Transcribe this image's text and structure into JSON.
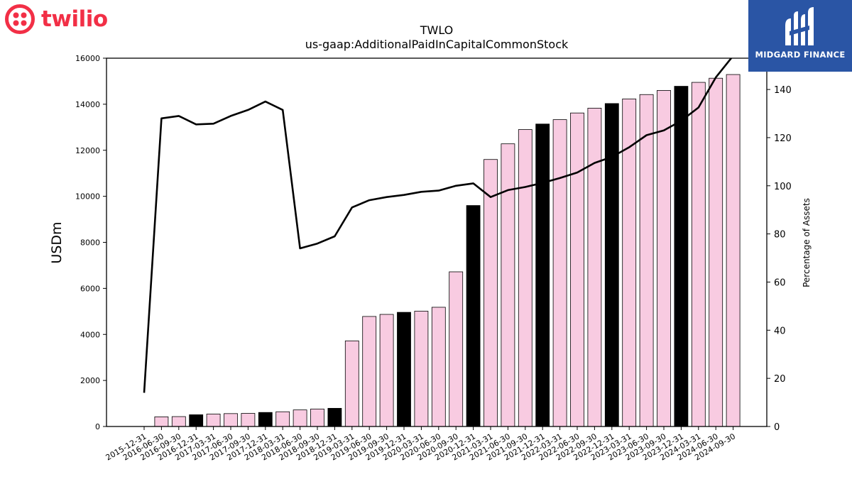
{
  "logos": {
    "left": {
      "text": "twilio",
      "color": "#f22f46"
    },
    "right": {
      "text": "MIDGARD FINANCE",
      "background": "#2a55a5"
    }
  },
  "chart_data": {
    "type": "bar",
    "title": "TWLO",
    "subtitle": "us-gaap:AdditionalPaidInCapitalCommonStock",
    "ylabel": "USDm",
    "y2label": "Percentage of Assets",
    "ylim": [
      0,
      16000
    ],
    "y2lim": [
      0,
      153
    ],
    "yticks": [
      0,
      2000,
      4000,
      6000,
      8000,
      10000,
      12000,
      14000,
      16000
    ],
    "y2ticks": [
      0,
      20,
      40,
      60,
      80,
      100,
      120,
      140
    ],
    "categories": [
      "2015-12-31",
      "2016-06-30",
      "2016-09-30",
      "2016-12-31",
      "2017-03-31",
      "2017-06-30",
      "2017-09-30",
      "2017-12-31",
      "2018-03-31",
      "2018-06-30",
      "2018-09-30",
      "2018-12-31",
      "2019-03-31",
      "2019-06-30",
      "2019-09-30",
      "2019-12-31",
      "2020-03-31",
      "2020-06-30",
      "2020-09-30",
      "2020-12-31",
      "2021-03-31",
      "2021-06-30",
      "2021-09-30",
      "2021-12-31",
      "2022-03-31",
      "2022-06-30",
      "2022-09-30",
      "2022-12-31",
      "2023-03-31",
      "2023-06-30",
      "2023-09-30",
      "2023-12-31",
      "2024-03-31",
      "2024-06-30",
      "2024-09-30"
    ],
    "series": [
      {
        "kind": "bar",
        "values": [
          0,
          420,
          430,
          510,
          540,
          560,
          570,
          610,
          640,
          720,
          760,
          790,
          3720,
          4780,
          4870,
          4960,
          5010,
          5180,
          6720,
          9600,
          11600,
          12280,
          12900,
          13140,
          13330,
          13620,
          13830,
          14030,
          14230,
          14420,
          14600,
          14780,
          14950,
          15130,
          15290
        ],
        "highlight": [
          false,
          false,
          false,
          true,
          false,
          false,
          false,
          true,
          false,
          false,
          false,
          true,
          false,
          false,
          false,
          true,
          false,
          false,
          false,
          true,
          false,
          false,
          false,
          true,
          false,
          false,
          false,
          true,
          false,
          false,
          false,
          true,
          false,
          false,
          false
        ],
        "color": "#f8cbe1",
        "highlight_color": "#000000"
      },
      {
        "kind": "line",
        "axis": "right",
        "values": [
          14,
          128,
          129,
          125.5,
          125.8,
          129,
          131.5,
          135,
          131.5,
          74,
          76,
          79,
          91,
          94,
          95.3,
          96.2,
          97.5,
          98,
          100,
          101,
          95.3,
          98.2,
          99.5,
          101.2,
          103.2,
          105.5,
          109.5,
          112,
          116,
          121,
          123,
          127,
          132.5,
          145,
          154
        ],
        "color": "#000000"
      }
    ]
  }
}
